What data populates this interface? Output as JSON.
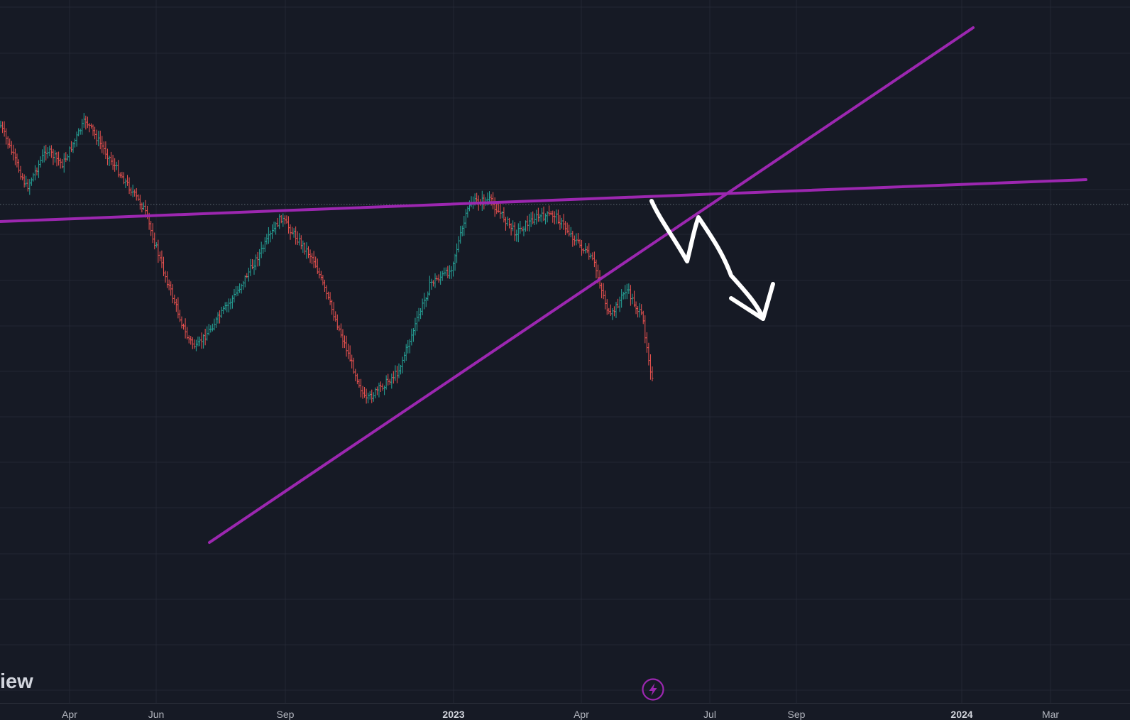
{
  "chart_data": {
    "type": "candlestick",
    "x_ticks": [
      {
        "label": "Apr",
        "bold": false
      },
      {
        "label": "Jun",
        "bold": false
      },
      {
        "label": "Sep",
        "bold": false
      },
      {
        "label": "2023",
        "bold": true
      },
      {
        "label": "Apr",
        "bold": false
      },
      {
        "label": "Jul",
        "bold": false
      },
      {
        "label": "Sep",
        "bold": false
      },
      {
        "label": "2024",
        "bold": true
      },
      {
        "label": "Mar",
        "bold": false
      }
    ],
    "grid": true,
    "up_color": "#26a69a",
    "down_color": "#ef5350",
    "trendline_color": "#9c27b0",
    "annotation_color": "#ffffff",
    "watermark": "iew",
    "price_path_shape": [
      [
        0.0,
        0.07
      ],
      [
        0.04,
        0.28
      ],
      [
        0.07,
        0.15
      ],
      [
        0.095,
        0.2
      ],
      [
        0.13,
        0.05
      ],
      [
        0.17,
        0.19
      ],
      [
        0.22,
        0.35
      ],
      [
        0.25,
        0.56
      ],
      [
        0.285,
        0.78
      ],
      [
        0.3,
        0.82
      ],
      [
        0.36,
        0.64
      ],
      [
        0.43,
        0.38
      ],
      [
        0.48,
        0.52
      ],
      [
        0.56,
        1.0
      ],
      [
        0.61,
        0.9
      ],
      [
        0.66,
        0.6
      ],
      [
        0.69,
        0.56
      ],
      [
        0.72,
        0.33
      ],
      [
        0.75,
        0.32
      ],
      [
        0.79,
        0.43
      ],
      [
        0.82,
        0.38
      ],
      [
        0.85,
        0.37
      ],
      [
        0.88,
        0.45
      ],
      [
        0.91,
        0.53
      ],
      [
        0.935,
        0.72
      ],
      [
        0.96,
        0.62
      ],
      [
        0.985,
        0.72
      ],
      [
        1.0,
        0.93
      ]
    ]
  }
}
